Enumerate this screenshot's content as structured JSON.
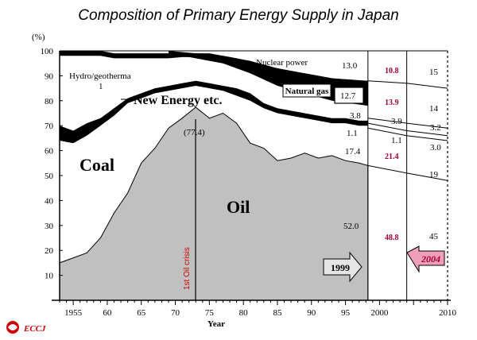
{
  "chart_data": {
    "type": "area",
    "title": "Composition of Primary Energy Supply in Japan",
    "ylabel": "(%)",
    "xlabel": "Year",
    "ylim": [
      0,
      100
    ],
    "xlim": [
      1953,
      2010
    ],
    "y_ticks": [
      "10",
      "20",
      "30",
      "40",
      "50",
      "60",
      "70",
      "80",
      "90",
      "100"
    ],
    "x_ticks": [
      {
        "v": 1955,
        "t": "1955"
      },
      {
        "v": 1960,
        "t": "60"
      },
      {
        "v": 1965,
        "t": "65"
      },
      {
        "v": 1970,
        "t": "70"
      },
      {
        "v": 1975,
        "t": "75"
      },
      {
        "v": 1980,
        "t": "80"
      },
      {
        "v": 1985,
        "t": "85"
      },
      {
        "v": 1990,
        "t": "90"
      },
      {
        "v": 1995,
        "t": "95"
      },
      {
        "v": 2000,
        "t": "2000"
      },
      {
        "v": 2010,
        "t": "2010"
      }
    ],
    "oil_top": [
      [
        1953,
        15
      ],
      [
        1955,
        17
      ],
      [
        1957,
        19
      ],
      [
        1959,
        25
      ],
      [
        1961,
        35
      ],
      [
        1963,
        43
      ],
      [
        1965,
        55
      ],
      [
        1967,
        61
      ],
      [
        1969,
        69
      ],
      [
        1971,
        73
      ],
      [
        1973,
        77.4
      ],
      [
        1975,
        73
      ],
      [
        1977,
        75
      ],
      [
        1979,
        71
      ],
      [
        1981,
        63
      ],
      [
        1983,
        61
      ],
      [
        1985,
        56
      ],
      [
        1987,
        57
      ],
      [
        1989,
        59
      ],
      [
        1991,
        57
      ],
      [
        1993,
        58
      ],
      [
        1995,
        56
      ],
      [
        1997,
        55
      ],
      [
        1998.3,
        54
      ]
    ],
    "coal_top_upper": [
      [
        1953,
        70
      ],
      [
        1955,
        68
      ],
      [
        1957,
        71
      ],
      [
        1959,
        73
      ],
      [
        1961,
        77
      ],
      [
        1963,
        81
      ],
      [
        1965,
        83
      ],
      [
        1967,
        85
      ],
      [
        1969,
        86
      ],
      [
        1971,
        87
      ],
      [
        1973,
        88
      ],
      [
        1975,
        87
      ],
      [
        1977,
        86
      ],
      [
        1979,
        85
      ],
      [
        1981,
        83
      ],
      [
        1983,
        79
      ],
      [
        1985,
        77
      ],
      [
        1987,
        76
      ],
      [
        1989,
        75
      ],
      [
        1991,
        74
      ],
      [
        1993,
        73
      ],
      [
        1995,
        73
      ],
      [
        1997,
        72
      ],
      [
        1998.3,
        72
      ]
    ],
    "coal_top_lower": [
      [
        1953,
        64
      ],
      [
        1955,
        63
      ],
      [
        1957,
        66
      ],
      [
        1959,
        70
      ],
      [
        1961,
        74
      ],
      [
        1963,
        79
      ],
      [
        1965,
        81
      ],
      [
        1967,
        83
      ],
      [
        1969,
        84
      ],
      [
        1971,
        85
      ],
      [
        1973,
        86
      ],
      [
        1975,
        85
      ],
      [
        1977,
        84
      ],
      [
        1979,
        82
      ],
      [
        1981,
        80
      ],
      [
        1983,
        77
      ],
      [
        1985,
        75
      ],
      [
        1987,
        74
      ],
      [
        1989,
        73
      ],
      [
        1991,
        72
      ],
      [
        1993,
        71
      ],
      [
        1995,
        71
      ],
      [
        1997,
        70
      ],
      [
        1998.3,
        70
      ]
    ],
    "hydro_top": [
      [
        1953,
        100
      ],
      [
        1955,
        100
      ],
      [
        1957,
        100
      ],
      [
        1959,
        100
      ],
      [
        1961,
        99
      ],
      [
        1963,
        99
      ],
      [
        1965,
        99
      ],
      [
        1967,
        99
      ],
      [
        1969,
        99
      ],
      [
        1971,
        99
      ],
      [
        1973,
        99
      ],
      [
        1975,
        99
      ],
      [
        1977,
        98
      ],
      [
        1979,
        97
      ],
      [
        1981,
        95
      ],
      [
        1983,
        94
      ],
      [
        1985,
        93
      ],
      [
        1987,
        92
      ],
      [
        1989,
        91
      ],
      [
        1991,
        90
      ],
      [
        1993,
        89
      ],
      [
        1995,
        88
      ],
      [
        1997,
        88
      ],
      [
        1998.3,
        88
      ]
    ],
    "gas_lower": [
      [
        1969,
        99
      ],
      [
        1973,
        97
      ],
      [
        1977,
        95
      ],
      [
        1981,
        91
      ],
      [
        1985,
        86
      ],
      [
        1989,
        83
      ],
      [
        1993,
        80
      ],
      [
        1998.3,
        78
      ]
    ],
    "gas_upper": [
      [
        1969,
        100
      ],
      [
        1973,
        99
      ],
      [
        1977,
        98
      ],
      [
        1981,
        96
      ],
      [
        1985,
        93
      ],
      [
        1989,
        91
      ],
      [
        1993,
        89
      ],
      [
        1998.3,
        88
      ]
    ],
    "projection_lines": [
      [
        [
          1998.3,
          88
        ],
        [
          2004,
          87
        ],
        [
          2010,
          85
        ]
      ],
      [
        [
          1998.3,
          73
        ],
        [
          2004,
          71
        ],
        [
          2010,
          69
        ]
      ],
      [
        [
          1998.3,
          71
        ],
        [
          2004,
          68
        ],
        [
          2010,
          66
        ]
      ],
      [
        [
          1998.3,
          69
        ],
        [
          2004,
          66
        ],
        [
          2010,
          64
        ]
      ],
      [
        [
          1998.3,
          54
        ],
        [
          2004,
          51
        ],
        [
          2010,
          48
        ]
      ]
    ],
    "annotations": {
      "nuclear": "Nuclear power",
      "hydro": "Hydro/geotherma",
      "hydro_one": "1",
      "new_energy": "New Energy etc.",
      "natural_gas": "Natural gas",
      "coal": "Coal",
      "oil": "Oil",
      "peak": "(77.4)",
      "crisis": "1st Oil crisis",
      "y1999": "1999",
      "y2004": "2004"
    },
    "values_1999": [
      "13.0",
      "12.7",
      "3.8",
      "1.1",
      "17.4",
      "52.0"
    ],
    "values_2004": [
      "10.8",
      "13.9",
      "3.9",
      "1.1",
      "21.4",
      "48.8"
    ],
    "values_2010": [
      "15",
      "14",
      "3.2",
      "3.0",
      "19",
      "45"
    ]
  },
  "logo": "ECCJ",
  "colors": {
    "oil": "#c0c0c0",
    "black": "#000000",
    "accent": "#a0003a",
    "arrow_1999": "#e6e6e6",
    "arrow_2004": "#ef9fb7"
  }
}
